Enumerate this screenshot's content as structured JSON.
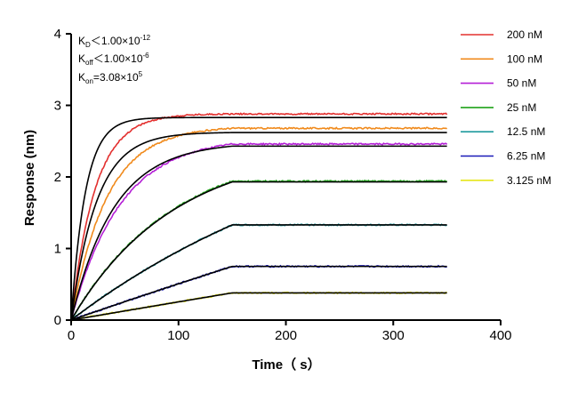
{
  "chart_data": {
    "type": "line",
    "title": "",
    "xlabel": "Time（ s）",
    "ylabel": "Response (nm)",
    "xlim": [
      0,
      400
    ],
    "ylim": [
      0,
      4
    ],
    "xticks": [
      0,
      100,
      200,
      300,
      400
    ],
    "yticks": [
      0,
      1,
      2,
      3,
      4
    ],
    "grid": false,
    "legend_position": "top-right",
    "association_end": 150,
    "end_time": 350,
    "annotations": {
      "kd": {
        "main": "K",
        "sub": "D",
        "rel": "＜",
        "value": "1.00×10",
        "exp": "-12"
      },
      "koff": {
        "main": "K",
        "sub": "off",
        "rel": "＜",
        "value": "1.00×10",
        "exp": "-6"
      },
      "kon": {
        "main": "K",
        "sub": "on",
        "rel": "=",
        "value": "3.08×10",
        "exp": "5"
      }
    },
    "series": [
      {
        "name": "200 nM",
        "color": "#e3302f",
        "plateau": 2.88,
        "rate": 0.045
      },
      {
        "name": "100 nM",
        "color": "#f08a1c",
        "plateau": 2.68,
        "rate": 0.03
      },
      {
        "name": "50 nM",
        "color": "#b41fd6",
        "plateau": 2.46,
        "rate": 0.022
      },
      {
        "name": "25 nM",
        "color": "#1fa319",
        "plateau": 1.94,
        "rate": 0.0105
      },
      {
        "name": "12.5 nM",
        "color": "#1f9a9e",
        "plateau": 1.33,
        "rate": 0.0036
      },
      {
        "name": "6.25 nM",
        "color": "#1a1ab8",
        "plateau": 0.75,
        "rate": 0.0006
      },
      {
        "name": "3.125 nM",
        "color": "#e6e61a",
        "plateau": 0.38,
        "rate": 0.0002
      }
    ],
    "fits": [
      {
        "plateau": 2.83,
        "rate": 0.075
      },
      {
        "plateau": 2.62,
        "rate": 0.042
      },
      {
        "plateau": 2.43,
        "rate": 0.025
      },
      {
        "plateau": 1.93,
        "rate": 0.0105
      },
      {
        "plateau": 1.33,
        "rate": 0.0036
      },
      {
        "plateau": 0.75,
        "rate": 0.0006
      },
      {
        "plateau": 0.38,
        "rate": 0.0002
      }
    ]
  }
}
